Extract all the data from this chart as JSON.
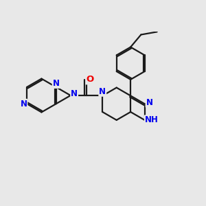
{
  "bg": "#e8e8e8",
  "bond_color": "#1a1a1a",
  "N_color": "#0000ee",
  "O_color": "#ee0000",
  "lw": 1.6,
  "dbl_off": 0.05,
  "figsize": [
    3.0,
    3.0
  ],
  "dpi": 100,
  "xlim": [
    -3.5,
    3.8
  ],
  "ylim": [
    -2.3,
    2.8
  ],
  "fs": 8.5
}
